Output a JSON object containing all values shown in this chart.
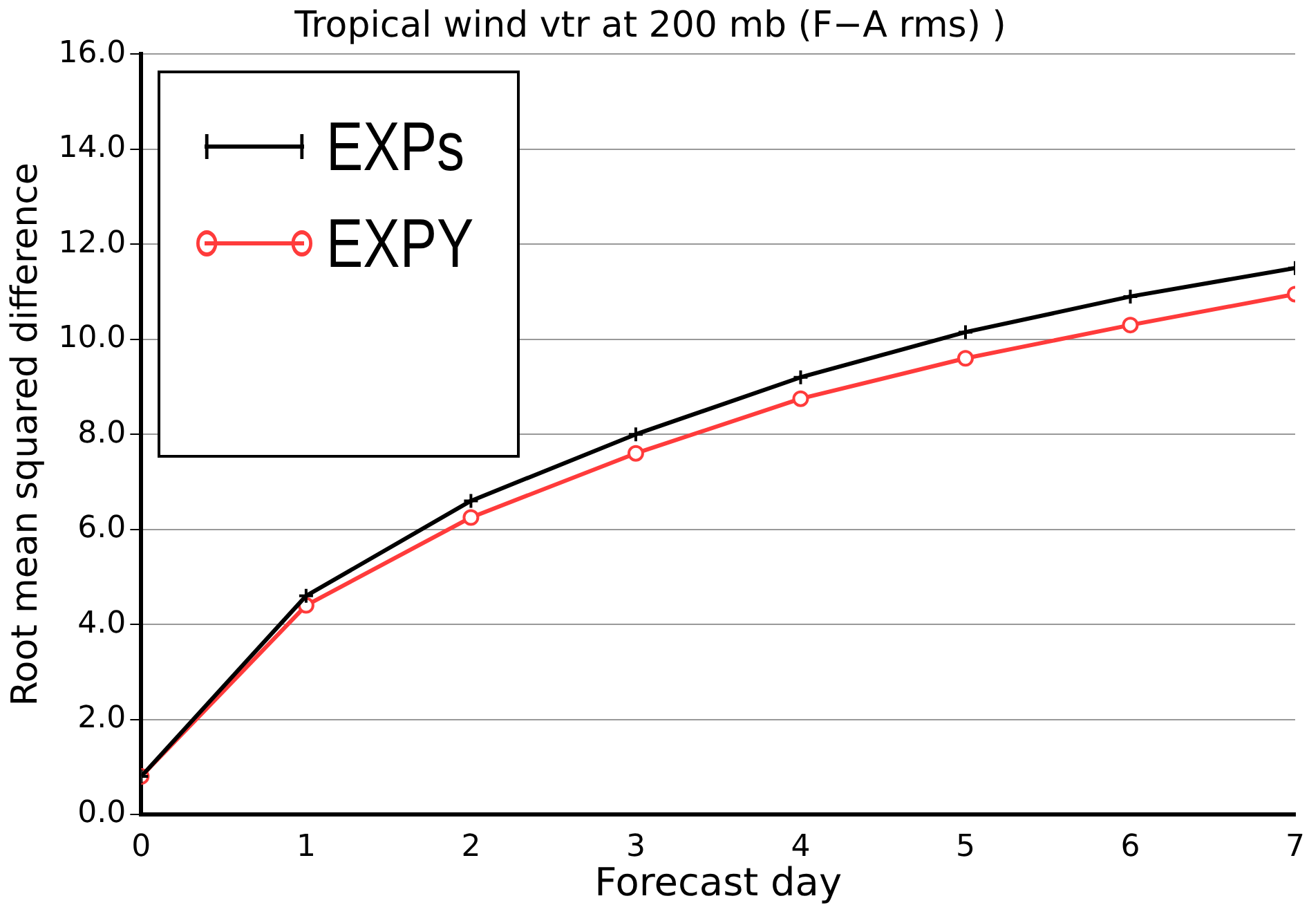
{
  "chart_data": {
    "type": "line",
    "subtitle": "Tropical wind vtr at 200 mb (F−A rms) )",
    "xlabel": "Forecast day",
    "ylabel": "Root mean squared difference",
    "x": [
      0,
      1,
      2,
      3,
      4,
      5,
      6,
      7
    ],
    "series": [
      {
        "name": "EXPs",
        "color": "#000000",
        "marker": "cross",
        "values": [
          0.8,
          4.6,
          6.6,
          8.0,
          9.2,
          10.15,
          10.9,
          11.5
        ]
      },
      {
        "name": "EXPY",
        "color": "#ff3b3b",
        "marker": "circle",
        "values": [
          0.8,
          4.4,
          6.25,
          7.6,
          8.75,
          9.6,
          10.3,
          10.95
        ]
      }
    ],
    "xlim": [
      0,
      7
    ],
    "xticks": [
      0,
      1,
      2,
      3,
      4,
      5,
      6,
      7
    ],
    "ylim": [
      0,
      16
    ],
    "yticks": [
      {
        "value": 0,
        "label": "0.0"
      },
      {
        "value": 2,
        "label": "2.0"
      },
      {
        "value": 4,
        "label": "4.0"
      },
      {
        "value": 6,
        "label": "6.0"
      },
      {
        "value": 8,
        "label": "8.0"
      },
      {
        "value": 10,
        "label": "10.0"
      },
      {
        "value": 12,
        "label": "12.0"
      },
      {
        "value": 14,
        "label": "14.0"
      },
      {
        "value": 16,
        "label": "16.0"
      }
    ],
    "grid": "y",
    "legend": "top left"
  }
}
